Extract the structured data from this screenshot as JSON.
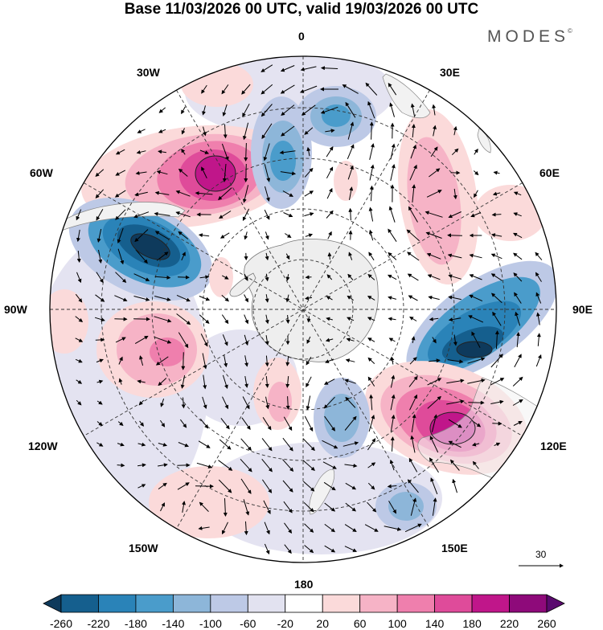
{
  "title": "Base 11/03/2026 00 UTC, valid 19/03/2026 00 UTC",
  "brand": {
    "name": "MODES",
    "mark": "©"
  },
  "longitude_labels": {
    "lon_0": "0",
    "lon_30e": "30E",
    "lon_60e": "60E",
    "lon_90e": "90E",
    "lon_120e": "120E",
    "lon_150e": "150E",
    "lon_180": "180",
    "lon_150w": "150W",
    "lon_120w": "120W",
    "lon_90w": "90W",
    "lon_60w": "60W",
    "lon_30w": "30W"
  },
  "vector_scale": {
    "value": "30"
  },
  "colorbar": {
    "ticks": [
      "-260",
      "-220",
      "-180",
      "-140",
      "-100",
      "-60",
      "-20",
      "20",
      "60",
      "100",
      "140",
      "180",
      "220",
      "260"
    ],
    "colors": [
      "#0e3a5c",
      "#155f8e",
      "#2a83b8",
      "#4a9ccb",
      "#8db6d9",
      "#bdc9e6",
      "#e2e2f0",
      "#ffffff",
      "#fbdada",
      "#f6b3c6",
      "#ef7fad",
      "#df4b9a",
      "#c0168a",
      "#8e0a7a",
      "#5a0a6e"
    ]
  },
  "anomalies": [
    {
      "name": "positive-anomaly-60w",
      "value": 240
    },
    {
      "name": "negative-anomaly-75w",
      "value": -260
    },
    {
      "name": "negative-anomaly-10w",
      "value": -140
    },
    {
      "name": "negative-anomaly-15e",
      "value": -100
    },
    {
      "name": "positive-anomaly-40e",
      "value": 100
    },
    {
      "name": "negative-anomaly-100e",
      "value": -230
    },
    {
      "name": "positive-anomaly-125e",
      "value": 240
    },
    {
      "name": "positive-anomaly-100w",
      "value": 120
    },
    {
      "name": "negative-anomaly-150e",
      "value": -100
    },
    {
      "name": "negative-anomaly-165e",
      "value": -100
    }
  ]
}
